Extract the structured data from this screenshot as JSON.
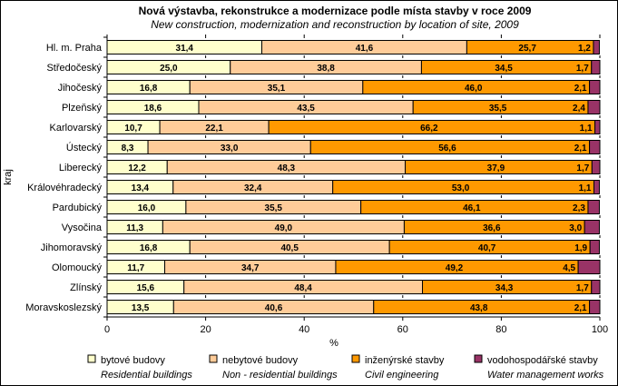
{
  "chart_data": {
    "type": "bar",
    "orientation": "horizontal",
    "stacked": true,
    "title": "Nová výstavba, rekonstrukce a modernizace podle místa stavby v roce 2009",
    "subtitle": "New construction, modernization and reconstruction by location of site, 2009",
    "xlabel": "%",
    "ylabel": "kraj",
    "xlim": [
      0,
      100
    ],
    "xticks": [
      "0",
      "20",
      "40",
      "60",
      "80",
      "100"
    ],
    "categories": [
      "Hl. m. Praha",
      "Středočeský",
      "Jihočeský",
      "Plzeňský",
      "Karlovarský",
      "Ústecký",
      "Liberecký",
      "Královéhradecký",
      "Pardubický",
      "Vysočina",
      "Jihomoravský",
      "Olomoucký",
      "Zlínský",
      "Moravskoslezský"
    ],
    "series": [
      {
        "name": "bytové budovy",
        "name_en": "Residential buildings",
        "color": "#FFFFCC",
        "values": [
          31.4,
          25.0,
          16.8,
          18.6,
          10.7,
          8.3,
          12.2,
          13.4,
          16.0,
          11.3,
          16.8,
          11.7,
          15.6,
          13.5
        ],
        "labels": [
          "31,4",
          "25,0",
          "16,8",
          "18,6",
          "10,7",
          "8,3",
          "12,2",
          "13,4",
          "16,0",
          "11,3",
          "16,8",
          "11,7",
          "15,6",
          "13,5"
        ]
      },
      {
        "name": "nebytové budovy",
        "name_en": "Non - residential buildings",
        "color": "#FFCC99",
        "values": [
          41.6,
          38.8,
          35.1,
          43.5,
          22.1,
          33.0,
          48.3,
          32.4,
          35.5,
          49.0,
          40.5,
          34.7,
          48.4,
          40.6
        ],
        "labels": [
          "41,6",
          "38,8",
          "35,1",
          "43,5",
          "22,1",
          "33,0",
          "48,3",
          "32,4",
          "35,5",
          "49,0",
          "40,5",
          "34,7",
          "48,4",
          "40,6"
        ]
      },
      {
        "name": "inženýrské stavby",
        "name_en": "Civil engineering",
        "color": "#FF9900",
        "values": [
          25.7,
          34.5,
          46.0,
          35.5,
          66.2,
          56.6,
          37.9,
          53.0,
          46.1,
          36.6,
          40.7,
          49.2,
          34.3,
          43.8
        ],
        "labels": [
          "25,7",
          "34,5",
          "46,0",
          "35,5",
          "66,2",
          "56,6",
          "37,9",
          "53,0",
          "46,1",
          "36,6",
          "40,7",
          "49,2",
          "34,3",
          "43,8"
        ]
      },
      {
        "name": "vodohospodářské stavby",
        "name_en": "Water management works",
        "color": "#993366",
        "values": [
          1.2,
          1.7,
          2.1,
          2.4,
          1.1,
          2.1,
          1.7,
          1.1,
          2.3,
          3.0,
          1.9,
          4.5,
          1.7,
          2.1
        ],
        "labels": [
          "1,2",
          "1,7",
          "2,1",
          "2,4",
          "1,1",
          "2,1",
          "1,7",
          "1,1",
          "2,3",
          "3,0",
          "1,9",
          "4,5",
          "1,7",
          "2,1"
        ]
      }
    ],
    "legend": "bottom",
    "grid": false
  }
}
